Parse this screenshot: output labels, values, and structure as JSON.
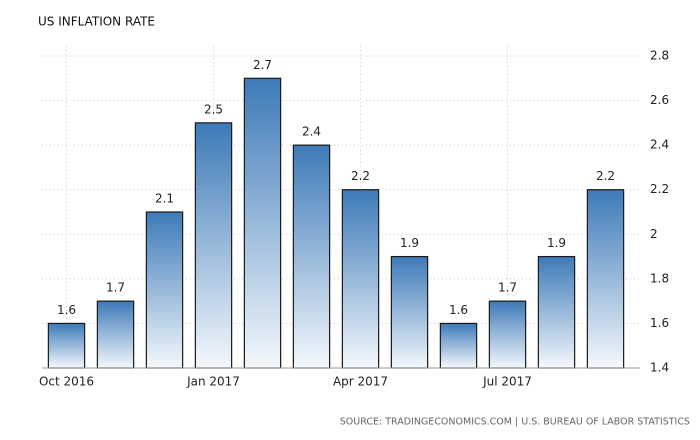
{
  "chart_data": {
    "type": "bar",
    "title": "US INFLATION RATE",
    "source": "SOURCE: TRADINGECONOMICS.COM | U.S. BUREAU OF LABOR STATISTICS",
    "categories": [
      "Oct 2016",
      null,
      null,
      "Jan 2017",
      null,
      null,
      "Apr 2017",
      null,
      null,
      "Jul 2017",
      null,
      null
    ],
    "values": [
      1.6,
      1.7,
      2.1,
      2.5,
      2.7,
      2.4,
      2.2,
      1.9,
      1.6,
      1.7,
      1.9,
      2.2
    ],
    "color": "#3d7ab8",
    "ylim": [
      1.4,
      2.8
    ],
    "yticks": [
      1.4,
      1.6,
      1.8,
      2,
      2.2,
      2.4,
      2.6,
      2.8
    ],
    "grid": true
  }
}
